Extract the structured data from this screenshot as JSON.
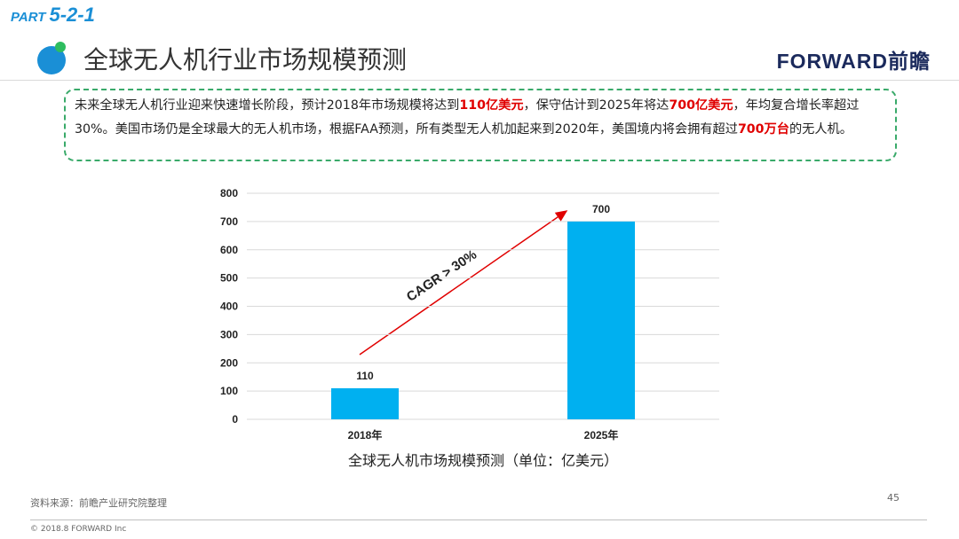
{
  "slide": {
    "part_label": "PART",
    "part_number": "5-2-1",
    "title": "全球无人机行业市场规模预测",
    "logo": "FORWARD前瞻",
    "paragraph": [
      {
        "text": "未来全球无人机行业迎来快速增长阶段，预计2018年市场规模将达到",
        "highlight": false
      },
      {
        "text": "110亿美元",
        "highlight": true
      },
      {
        "text": "，保守估计到2025年将达",
        "highlight": false
      },
      {
        "text": "700亿美元",
        "highlight": true
      },
      {
        "text": "，年均复合增长率超过30%。美国市场仍是全球最大的无人机市场，根据FAA预测，所有类型无人机加起来到2020年，美国境内将会拥有超过",
        "highlight": false
      },
      {
        "text": "700万台",
        "highlight": true
      },
      {
        "text": "的无人机。",
        "highlight": false
      }
    ],
    "source": "资料来源：前瞻产业研究院整理",
    "page_number": "45",
    "copyright": "© 2018.8 FORWARD Inc"
  },
  "chart_data": {
    "type": "bar",
    "categories": [
      "2018年",
      "2025年"
    ],
    "values": [
      110,
      700
    ],
    "color": "#00b0f0",
    "ylim": [
      0,
      800
    ],
    "yticks": [
      0,
      100,
      200,
      300,
      400,
      500,
      600,
      700,
      800
    ],
    "grid": true,
    "xlabel": "全球无人机市场规模预测（单位：亿美元）",
    "annotation": "CAGR > 30%",
    "data_labels": true
  }
}
